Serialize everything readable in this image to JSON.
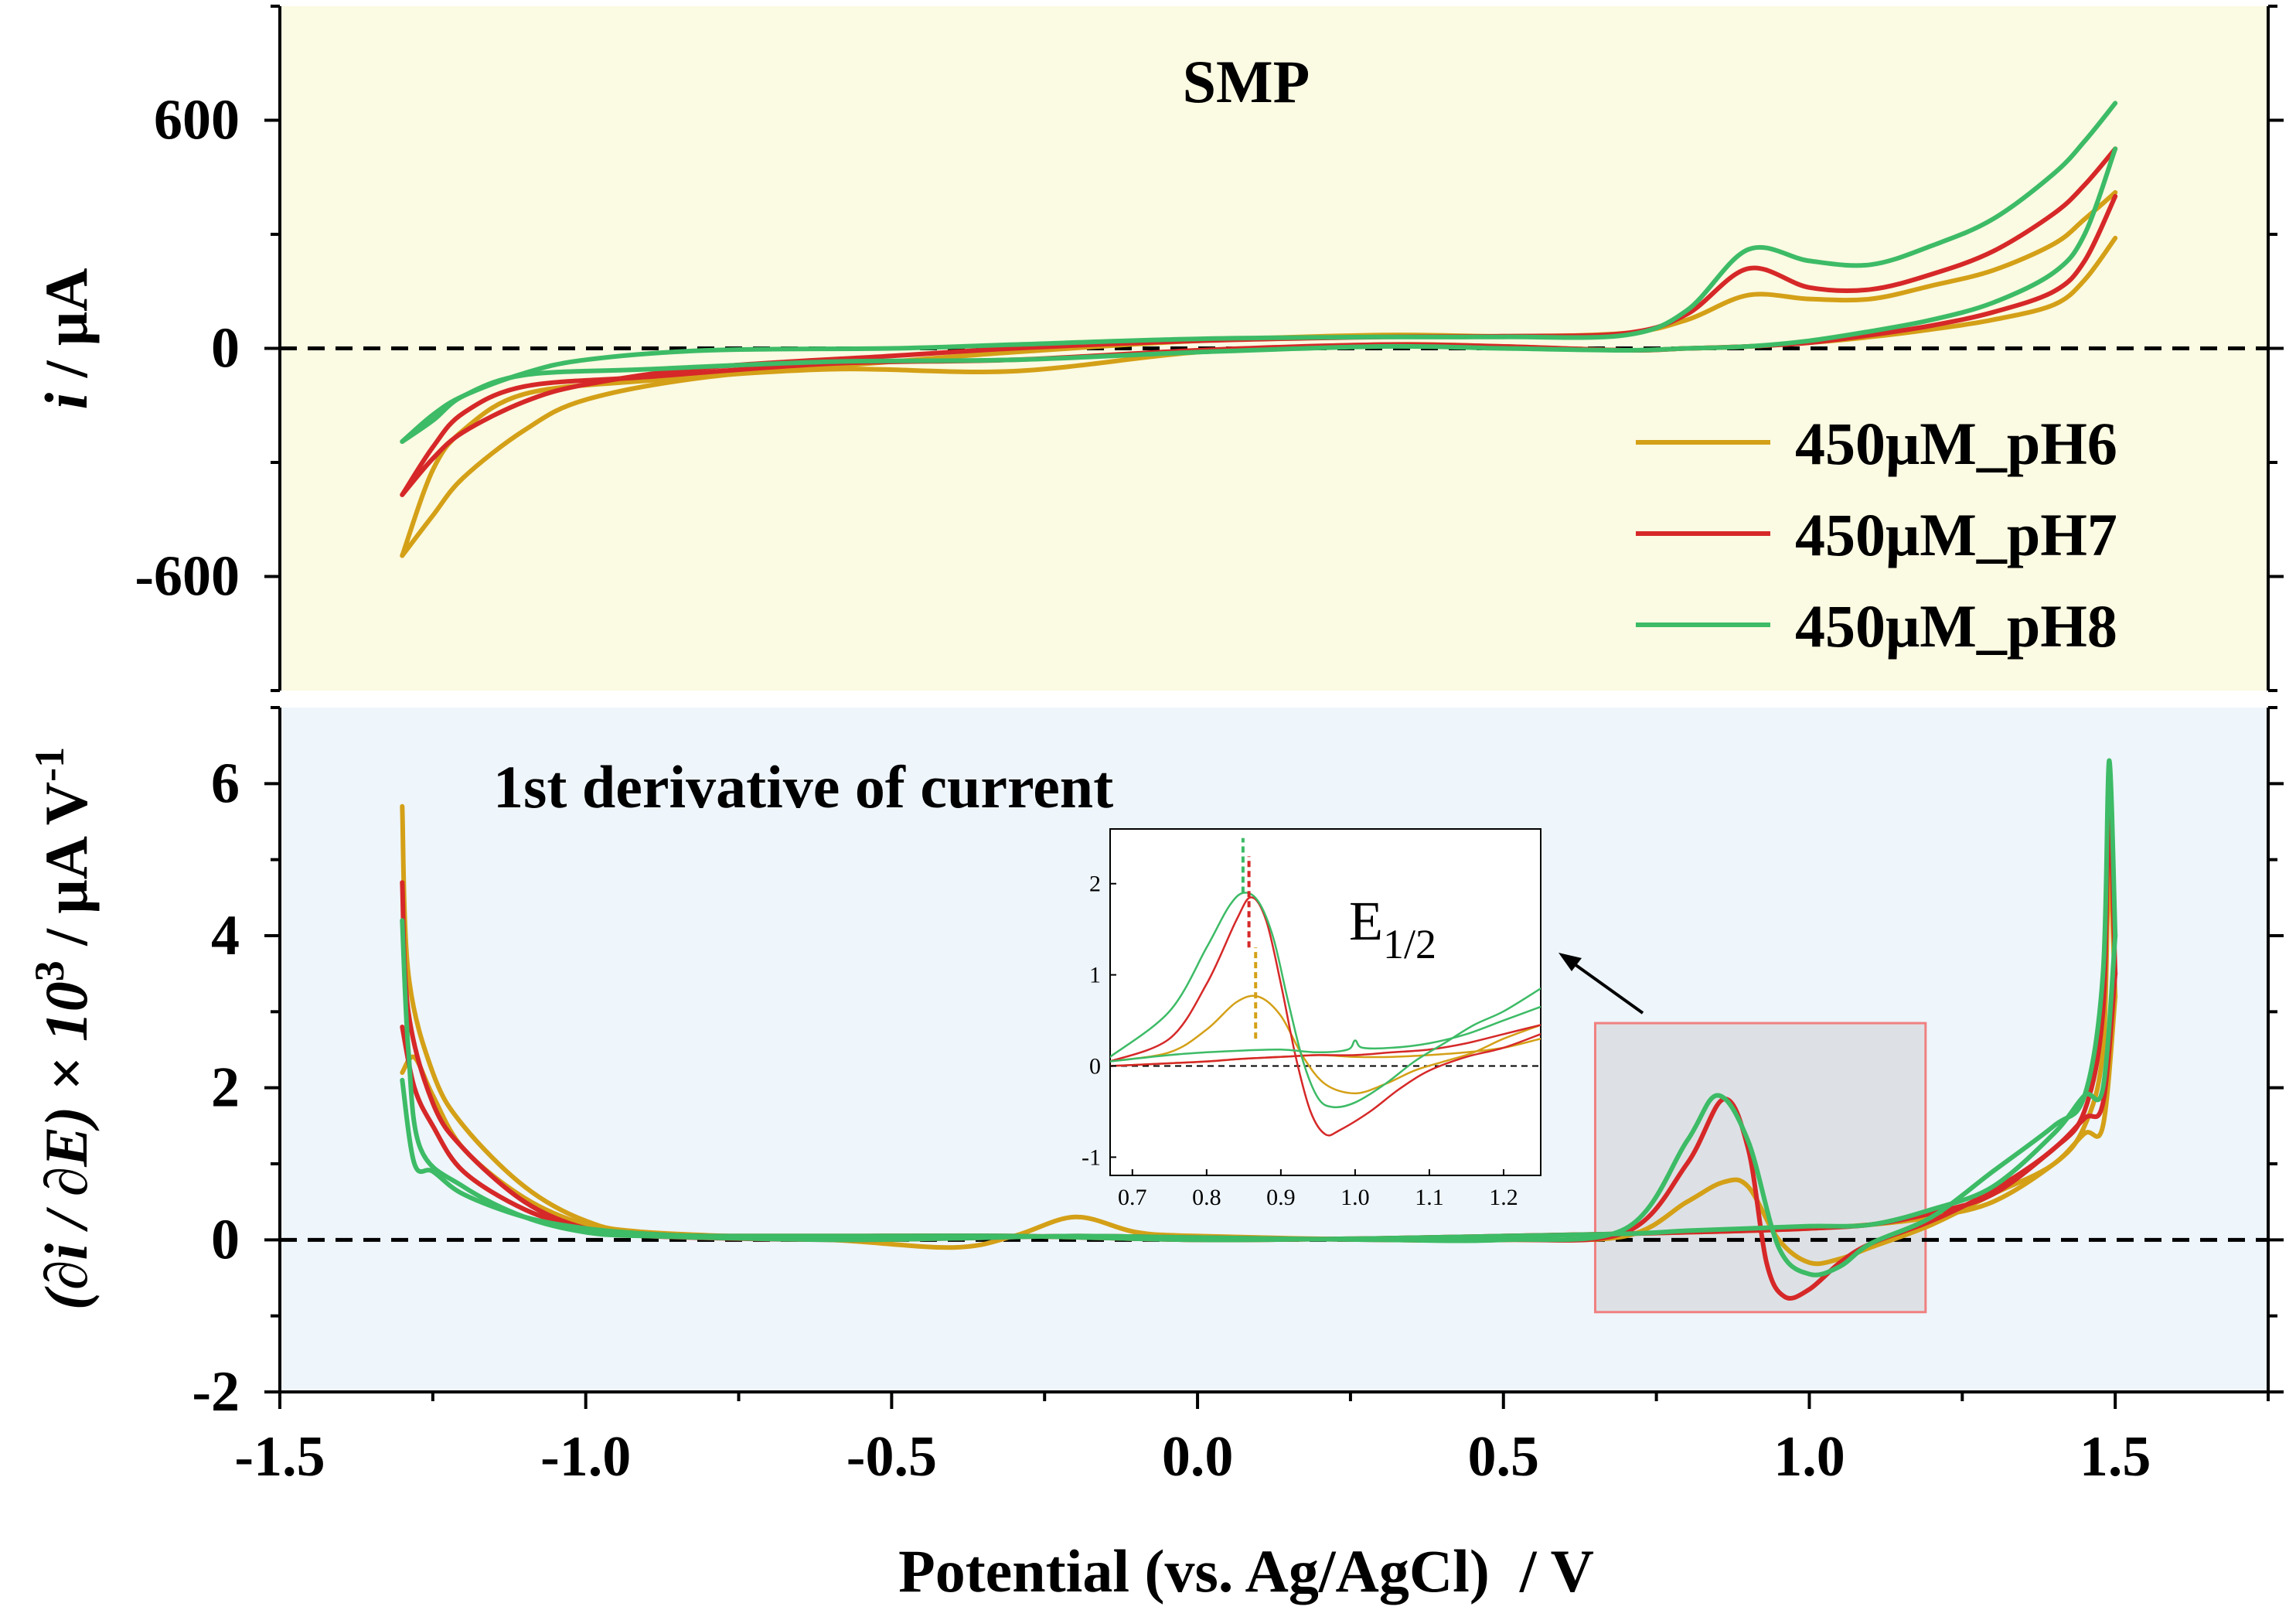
{
  "figure": {
    "x_axis_label": "Potential (vs. Ag/AgCl)  / V",
    "x_ticks": [
      "-1.5",
      "-1.0",
      "-0.5",
      "0.0",
      "0.5",
      "1.0",
      "1.5"
    ],
    "top_ylabel_italic": "i",
    "top_ylabel_rest": " / μA",
    "bottom_ylabel_main": "(∂i / ∂E) × 10",
    "bottom_ylabel_sup": "3",
    "bottom_ylabel_unit": " / μA V",
    "bottom_ylabel_unit_sup": "-1",
    "inset_label_main": "E",
    "inset_label_sub": "1/2"
  },
  "colors": {
    "pH6": "#d4a017",
    "pH7": "#d62828",
    "pH8": "#3dbb66",
    "top_bg": "#fbfae2",
    "bottom_bg": "#eef5fb",
    "highlight_box": "#f08080",
    "highlight_fill": "#d9dde0"
  },
  "chart_data": [
    {
      "type": "line",
      "title": "SMP",
      "xlabel": "Potential (vs. Ag/AgCl)  / V",
      "ylabel": "i / μA",
      "xlim": [
        -1.5,
        1.75
      ],
      "ylim": [
        -900,
        900
      ],
      "y_ticks": [
        "600",
        "0",
        "-600"
      ],
      "x_ticks": [
        -1.5,
        -1.0,
        -0.5,
        0.0,
        0.5,
        1.0,
        1.5
      ],
      "zero_line": true,
      "legend": {
        "placement": "right",
        "entries": [
          "450μM_pH6",
          "450μM_pH7",
          "450μM_pH8"
        ]
      },
      "series": [
        {
          "name": "450μM_pH6",
          "forward": {
            "x": [
              -1.3,
              -1.25,
              -1.2,
              -1.1,
              -1.0,
              -0.8,
              -0.5,
              -0.3,
              0.0,
              0.3,
              0.5,
              0.7,
              0.8,
              0.9,
              1.0,
              1.1,
              1.2,
              1.3,
              1.4,
              1.45,
              1.5
            ],
            "y": [
              -545,
              -440,
              -340,
              -215,
              -135,
              -75,
              -35,
              -10,
              20,
              35,
              32,
              40,
              75,
              140,
              130,
              130,
              165,
              205,
              275,
              340,
              410
            ]
          },
          "reverse": {
            "x": [
              1.5,
              1.45,
              1.4,
              1.3,
              1.2,
              1.1,
              1.0,
              0.9,
              0.8,
              0.7,
              0.5,
              0.3,
              0.0,
              -0.3,
              -0.6,
              -0.9,
              -1.1,
              -1.2,
              -1.25,
              -1.3
            ],
            "y": [
              290,
              180,
              115,
              75,
              50,
              30,
              15,
              5,
              0,
              -5,
              5,
              10,
              -10,
              -60,
              -55,
              -85,
              -120,
              -215,
              -320,
              -545
            ]
          }
        },
        {
          "name": "450μM_pH7",
          "forward": {
            "x": [
              -1.3,
              -1.25,
              -1.2,
              -1.1,
              -1.0,
              -0.8,
              -0.5,
              -0.3,
              0.0,
              0.3,
              0.5,
              0.7,
              0.8,
              0.9,
              1.0,
              1.1,
              1.2,
              1.3,
              1.4,
              1.45,
              1.5
            ],
            "y": [
              -385,
              -290,
              -220,
              -140,
              -95,
              -50,
              -20,
              0,
              20,
              30,
              32,
              40,
              90,
              210,
              160,
              155,
              195,
              255,
              355,
              430,
              525
            ]
          },
          "reverse": {
            "x": [
              1.5,
              1.45,
              1.4,
              1.3,
              1.2,
              1.1,
              1.0,
              0.9,
              0.8,
              0.7,
              0.5,
              0.3,
              0.0,
              -0.3,
              -0.6,
              -0.9,
              -1.1,
              -1.2,
              -1.25,
              -1.3
            ],
            "y": [
              400,
              230,
              150,
              95,
              60,
              35,
              15,
              5,
              0,
              -5,
              5,
              10,
              -5,
              -30,
              -40,
              -75,
              -100,
              -170,
              -260,
              -385
            ]
          }
        },
        {
          "name": "450μM_pH8",
          "forward": {
            "x": [
              -1.3,
              -1.25,
              -1.2,
              -1.1,
              -1.0,
              -0.8,
              -0.5,
              -0.3,
              0.0,
              0.3,
              0.5,
              0.7,
              0.8,
              0.9,
              1.0,
              1.1,
              1.2,
              1.3,
              1.4,
              1.45,
              1.5
            ],
            "y": [
              -245,
              -175,
              -125,
              -65,
              -30,
              -5,
              0,
              10,
              25,
              30,
              30,
              35,
              100,
              260,
              230,
              220,
              270,
              340,
              460,
              545,
              645
            ]
          },
          "reverse": {
            "x": [
              1.5,
              1.45,
              1.4,
              1.3,
              1.2,
              1.1,
              1.0,
              0.9,
              0.8,
              0.7,
              0.5,
              0.3,
              0.0,
              -0.3,
              -0.6,
              -0.9,
              -1.1,
              -1.2,
              -1.25,
              -1.3
            ],
            "y": [
              525,
              300,
              200,
              120,
              75,
              45,
              20,
              5,
              0,
              -5,
              0,
              5,
              -10,
              -30,
              -35,
              -55,
              -70,
              -125,
              -190,
              -245
            ]
          }
        }
      ]
    },
    {
      "type": "line",
      "title": "1st derivative of current",
      "xlabel": "Potential (vs. Ag/AgCl)  / V",
      "ylabel": "(∂i / ∂E) × 10^3 / μA V^-1",
      "xlim": [
        -1.5,
        1.75
      ],
      "ylim": [
        -2,
        7
      ],
      "y_ticks": [
        "6",
        "4",
        "2",
        "0",
        "-2"
      ],
      "x_ticks": [
        -1.5,
        -1.0,
        -0.5,
        0.0,
        0.5,
        1.0,
        1.5
      ],
      "zero_line": true,
      "highlight_region": {
        "x": [
          0.65,
          1.19
        ],
        "y": [
          -0.95,
          2.85
        ]
      },
      "series": [
        {
          "name": "450μM_pH6",
          "forward": {
            "x": [
              -1.3,
              -1.29,
              -1.25,
              -1.2,
              -1.1,
              -1.0,
              -0.9,
              -0.6,
              -0.4,
              -0.3,
              -0.2,
              -0.1,
              0.0,
              0.3,
              0.5,
              0.7,
              0.8,
              0.86,
              0.9,
              0.95,
              1.0,
              1.05,
              1.1,
              1.2,
              1.3,
              1.4,
              1.45,
              1.48,
              1.49,
              1.5
            ],
            "y": [
              5.7,
              3.5,
              2.2,
              1.5,
              0.7,
              0.25,
              0.1,
              0.0,
              -0.1,
              0.05,
              0.3,
              0.1,
              0.05,
              0.0,
              0.0,
              0.05,
              0.5,
              0.76,
              0.7,
              0.0,
              -0.3,
              -0.25,
              -0.1,
              0.2,
              0.6,
              1.0,
              1.5,
              2.5,
              4.9,
              3.2
            ]
          },
          "reverse": {
            "x": [
              1.5,
              1.48,
              1.45,
              1.4,
              1.3,
              1.2,
              1.1,
              1.0,
              0.9,
              0.8,
              0.7,
              0.5,
              0.3,
              0.0,
              -0.3,
              -0.6,
              -0.8,
              -0.9,
              -1.0,
              -1.1,
              -1.2,
              -1.25,
              -1.28,
              -1.3
            ],
            "y": [
              3.2,
              1.5,
              1.4,
              1.0,
              0.5,
              0.3,
              0.2,
              0.15,
              0.12,
              0.1,
              0.08,
              0.05,
              0.02,
              0.0,
              0.05,
              0.05,
              0.05,
              0.08,
              0.2,
              0.55,
              1.2,
              1.9,
              2.4,
              2.2
            ]
          }
        },
        {
          "name": "450μM_pH7",
          "forward": {
            "x": [
              -1.3,
              -1.29,
              -1.25,
              -1.2,
              -1.1,
              -1.0,
              -0.9,
              -0.6,
              -0.4,
              -0.2,
              0.0,
              0.3,
              0.5,
              0.7,
              0.8,
              0.86,
              0.9,
              0.93,
              0.96,
              1.0,
              1.05,
              1.1,
              1.2,
              1.3,
              1.4,
              1.45,
              1.48,
              1.49,
              1.5
            ],
            "y": [
              4.7,
              3.0,
              1.8,
              1.2,
              0.5,
              0.15,
              0.05,
              0.0,
              0.02,
              0.05,
              0.03,
              0.0,
              0.0,
              0.1,
              1.0,
              1.85,
              1.2,
              -0.3,
              -0.75,
              -0.65,
              -0.3,
              -0.05,
              0.25,
              0.65,
              1.2,
              1.7,
              3.0,
              5.6,
              3.5
            ]
          },
          "reverse": {
            "x": [
              1.5,
              1.48,
              1.45,
              1.4,
              1.3,
              1.2,
              1.1,
              1.0,
              0.9,
              0.8,
              0.7,
              0.5,
              0.3,
              0.0,
              -0.3,
              -0.6,
              -0.8,
              -0.9,
              -1.0,
              -1.1,
              -1.2,
              -1.25,
              -1.28,
              -1.3
            ],
            "y": [
              3.5,
              1.8,
              1.6,
              1.2,
              0.6,
              0.35,
              0.2,
              0.15,
              0.12,
              0.1,
              0.08,
              0.05,
              0.02,
              0.0,
              0.05,
              0.05,
              0.05,
              0.08,
              0.15,
              0.4,
              0.9,
              1.5,
              2.0,
              2.8
            ]
          }
        },
        {
          "name": "450μM_pH8",
          "forward": {
            "x": [
              -1.3,
              -1.29,
              -1.27,
              -1.2,
              -1.1,
              -1.0,
              -0.9,
              -0.6,
              -0.4,
              -0.2,
              0.0,
              0.3,
              0.5,
              0.7,
              0.8,
              0.85,
              0.9,
              0.95,
              1.0,
              1.05,
              1.1,
              1.2,
              1.3,
              1.4,
              1.45,
              1.48,
              1.49,
              1.5
            ],
            "y": [
              4.2,
              2.5,
              1.2,
              0.7,
              0.3,
              0.1,
              0.05,
              0.0,
              0.02,
              0.05,
              0.03,
              0.0,
              0.0,
              0.15,
              1.3,
              1.9,
              1.3,
              -0.1,
              -0.45,
              -0.35,
              -0.05,
              0.3,
              0.9,
              1.5,
              1.9,
              3.5,
              6.3,
              4.0
            ]
          },
          "reverse": {
            "x": [
              1.5,
              1.48,
              1.45,
              1.4,
              1.3,
              1.2,
              1.1,
              1.0,
              0.9,
              0.8,
              0.7,
              0.5,
              0.3,
              0.0,
              -0.3,
              -0.6,
              -0.8,
              -0.9,
              -1.0,
              -1.1,
              -1.2,
              -1.25,
              -1.28,
              -1.3
            ],
            "y": [
              4.0,
              2.0,
              1.9,
              1.4,
              0.7,
              0.4,
              0.2,
              0.18,
              0.15,
              0.12,
              0.08,
              0.05,
              0.02,
              0.0,
              0.05,
              0.05,
              0.05,
              0.08,
              0.15,
              0.3,
              0.6,
              0.9,
              1.0,
              2.1
            ]
          }
        }
      ]
    },
    {
      "type": "line",
      "title": "E1/2",
      "xlim": [
        0.67,
        1.25
      ],
      "ylim": [
        -1.2,
        2.6
      ],
      "x_ticks": [
        "0.7",
        "0.8",
        "0.9",
        "1.0",
        "1.1",
        "1.2"
      ],
      "y_ticks": [
        "2",
        "1",
        "0",
        "-1"
      ],
      "zero_line": true,
      "markers": [
        {
          "series": "450μM_pH8",
          "x": 0.849,
          "y": [
            1.9,
            2.5
          ]
        },
        {
          "series": "450μM_pH7",
          "x": 0.857,
          "y": [
            1.3,
            2.3
          ]
        },
        {
          "series": "450μM_pH6",
          "x": 0.866,
          "y": [
            0.3,
            1.3
          ]
        }
      ],
      "series": [
        {
          "name": "450μM_pH6",
          "forward": {
            "x": [
              0.67,
              0.75,
              0.8,
              0.84,
              0.87,
              0.9,
              0.93,
              0.96,
              1.0,
              1.04,
              1.08,
              1.12,
              1.16,
              1.2,
              1.25
            ],
            "y": [
              0.05,
              0.15,
              0.4,
              0.7,
              0.76,
              0.55,
              0.1,
              -0.2,
              -0.3,
              -0.2,
              -0.05,
              0.05,
              0.15,
              0.3,
              0.45
            ]
          },
          "reverse": {
            "x": [
              1.25,
              1.2,
              1.15,
              1.1,
              1.05,
              1.0,
              0.95,
              0.9,
              0.85,
              0.8,
              0.75,
              0.67
            ],
            "y": [
              0.3,
              0.2,
              0.15,
              0.12,
              0.1,
              0.1,
              0.12,
              0.1,
              0.08,
              0.05,
              0.03,
              0.0
            ]
          }
        },
        {
          "name": "450μM_pH7",
          "forward": {
            "x": [
              0.67,
              0.75,
              0.8,
              0.84,
              0.86,
              0.88,
              0.9,
              0.92,
              0.94,
              0.96,
              0.98,
              1.02,
              1.06,
              1.1,
              1.15,
              1.2,
              1.25
            ],
            "y": [
              0.05,
              0.3,
              0.9,
              1.6,
              1.85,
              1.6,
              0.9,
              0.1,
              -0.5,
              -0.75,
              -0.7,
              -0.5,
              -0.25,
              -0.05,
              0.1,
              0.2,
              0.35
            ]
          },
          "reverse": {
            "x": [
              1.25,
              1.2,
              1.15,
              1.1,
              1.05,
              1.0,
              0.95,
              0.9,
              0.85,
              0.8,
              0.75,
              0.67
            ],
            "y": [
              0.45,
              0.35,
              0.25,
              0.18,
              0.15,
              0.12,
              0.12,
              0.1,
              0.08,
              0.05,
              0.03,
              0.0
            ]
          }
        },
        {
          "name": "450μM_pH8",
          "forward": {
            "x": [
              0.67,
              0.75,
              0.8,
              0.83,
              0.85,
              0.87,
              0.89,
              0.91,
              0.93,
              0.95,
              0.97,
              1.0,
              1.04,
              1.08,
              1.12,
              1.16,
              1.2,
              1.25
            ],
            "y": [
              0.1,
              0.6,
              1.3,
              1.75,
              1.9,
              1.8,
              1.4,
              0.7,
              0.05,
              -0.35,
              -0.45,
              -0.4,
              -0.2,
              0.05,
              0.25,
              0.45,
              0.6,
              0.85
            ]
          },
          "reverse": {
            "x": [
              1.25,
              1.2,
              1.15,
              1.1,
              1.05,
              1.01,
              1.0,
              0.99,
              0.95,
              0.9,
              0.85,
              0.8,
              0.75,
              0.67
            ],
            "y": [
              0.65,
              0.5,
              0.35,
              0.25,
              0.2,
              0.2,
              0.28,
              0.18,
              0.15,
              0.18,
              0.17,
              0.15,
              0.12,
              0.05
            ]
          }
        }
      ]
    }
  ]
}
